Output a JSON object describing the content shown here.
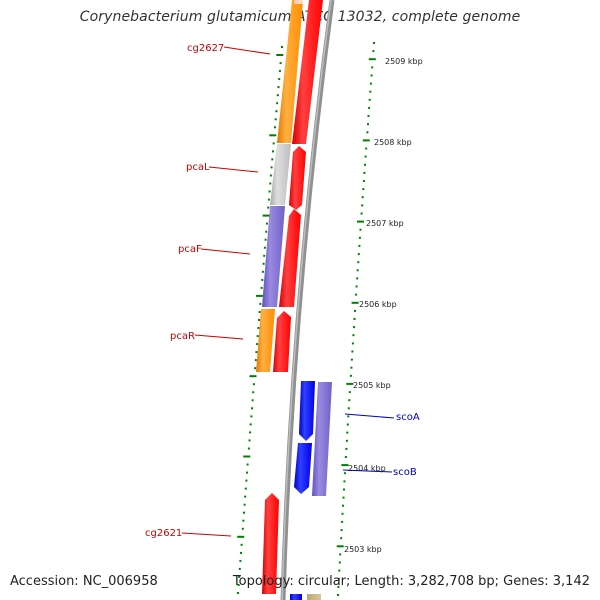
{
  "title": "Corynebacterium glutamicum ATCC 13032, complete genome",
  "footer": {
    "accession": "Accession: NC_006958",
    "summary": "Topology: circular; Length: 3,282,708 bp; Genes: 3,142"
  },
  "ticks": [
    {
      "label": "2509 kbp"
    },
    {
      "label": "2508 kbp"
    },
    {
      "label": "2507 kbp"
    },
    {
      "label": "2506 kbp"
    },
    {
      "label": "2505 kbp"
    },
    {
      "label": "2504 kbp"
    },
    {
      "label": "2503 kbp"
    }
  ],
  "genes": [
    {
      "name": "cg2627",
      "color": "#cc0000",
      "strand": "reverse",
      "segment_color": "#ff8c00"
    },
    {
      "name": "pcaL",
      "color": "#cc0000",
      "strand": "reverse",
      "segment_color": "#c0c0c0"
    },
    {
      "name": "pcaF",
      "color": "#cc0000",
      "strand": "reverse",
      "segment_color": "#7b68cc"
    },
    {
      "name": "pcaR",
      "color": "#cc0000",
      "strand": "reverse",
      "segment_color": "#ff8c00"
    },
    {
      "name": "scoA",
      "color": "#0000cc",
      "strand": "forward",
      "segment_color": "#7b68cc"
    },
    {
      "name": "scoB",
      "color": "#0000cc",
      "strand": "forward",
      "segment_color": "#7b68cc"
    },
    {
      "name": "cg2621",
      "color": "#cc0000",
      "strand": "forward",
      "segment_color": "#ff0000"
    }
  ],
  "colors": {
    "cds_red": "#ff0000",
    "cds_blue": "#0000ff",
    "orange": "#ff8c00",
    "grey": "#c0c0c0",
    "purple": "#7b68cc",
    "backbone": "#808080",
    "tick_green": "#008000"
  }
}
